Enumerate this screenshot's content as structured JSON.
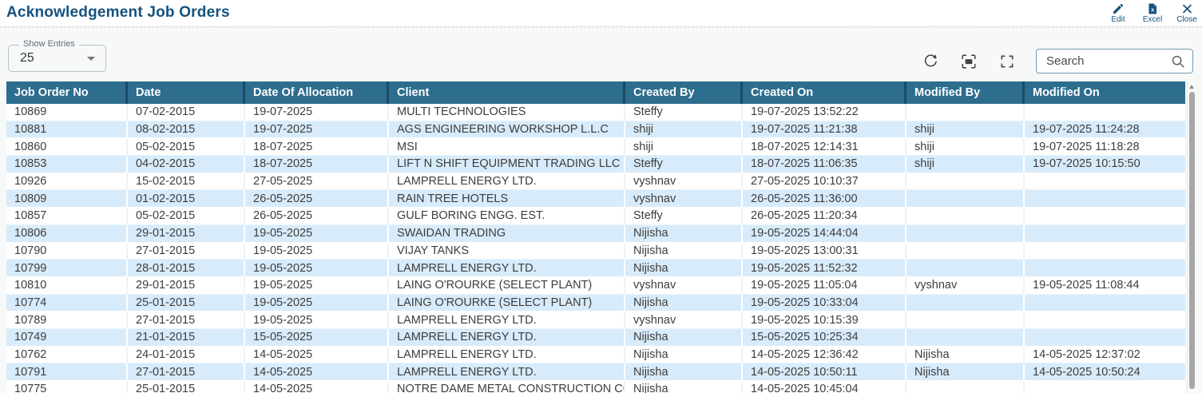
{
  "page": {
    "title": "Acknowledgement Job Orders"
  },
  "actions": {
    "edit": "Edit",
    "excel": "Excel",
    "close": "Close"
  },
  "controls": {
    "show_entries": {
      "label": "Show Entries",
      "value": "25"
    },
    "search": {
      "placeholder": "Search"
    }
  },
  "icons": {
    "edit": "pencil-icon",
    "excel": "excel-file-icon",
    "close": "close-x-icon",
    "refresh": "circular-arrow-icon",
    "fit_screen": "fit-to-screen-icon",
    "fullscreen": "expand-corners-icon",
    "search": "magnifier-icon",
    "show_entries": "caret-down-icon",
    "scrollbar": "triangle-up-icon"
  },
  "colors": {
    "accent_blue": "#14527d",
    "header_bg": "#2d6d8e",
    "header_separator": "#1b4b67",
    "row_alt": "#d8ebfa",
    "panel_bg": "#f6f9f8",
    "cell_text": "#3d3d3d"
  },
  "table": {
    "columns": [
      "Job Order No",
      "Date",
      "Date Of Allocation",
      "Client",
      "Created By",
      "Created On",
      "Modified By",
      "Modified On"
    ],
    "rows": [
      [
        "10869",
        "07-02-2015",
        "19-07-2025",
        "MULTI TECHNOLOGIES",
        "Steffy",
        "19-07-2025 13:52:22",
        "",
        ""
      ],
      [
        "10881",
        "08-02-2015",
        "19-07-2025",
        "AGS ENGINEERING WORKSHOP L.L.C",
        "shiji",
        "19-07-2025 11:21:38",
        "shiji",
        "19-07-2025 11:24:28"
      ],
      [
        "10860",
        "05-02-2015",
        "18-07-2025",
        "MSI",
        "shiji",
        "18-07-2025 12:14:31",
        "shiji",
        "19-07-2025 11:18:28"
      ],
      [
        "10853",
        "04-02-2015",
        "18-07-2025",
        "LIFT N SHIFT EQUIPMENT TRADING LLC",
        "Steffy",
        "18-07-2025 11:06:35",
        "shiji",
        "19-07-2025 10:15:50"
      ],
      [
        "10926",
        "15-02-2015",
        "27-05-2025",
        "LAMPRELL ENERGY LTD.",
        "vyshnav",
        "27-05-2025 10:10:37",
        "",
        ""
      ],
      [
        "10809",
        "01-02-2015",
        "26-05-2025",
        "RAIN TREE HOTELS",
        "vyshnav",
        "26-05-2025 11:36:00",
        "",
        ""
      ],
      [
        "10857",
        "05-02-2015",
        "26-05-2025",
        "GULF BORING ENGG. EST.",
        "Steffy",
        "26-05-2025 11:20:34",
        "",
        ""
      ],
      [
        "10806",
        "29-01-2015",
        "19-05-2025",
        "SWAIDAN TRADING",
        "Nijisha",
        "19-05-2025 14:44:04",
        "",
        ""
      ],
      [
        "10790",
        "27-01-2015",
        "19-05-2025",
        "VIJAY TANKS",
        "Nijisha",
        "19-05-2025 13:00:31",
        "",
        ""
      ],
      [
        "10799",
        "28-01-2015",
        "19-05-2025",
        "LAMPRELL ENERGY LTD.",
        "Nijisha",
        "19-05-2025 11:52:32",
        "",
        ""
      ],
      [
        "10810",
        "29-01-2015",
        "19-05-2025",
        "LAING O'ROURKE (SELECT PLANT)",
        "vyshnav",
        "19-05-2025 11:05:04",
        "vyshnav",
        "19-05-2025 11:08:44"
      ],
      [
        "10774",
        "25-01-2015",
        "19-05-2025",
        "LAING O'ROURKE (SELECT PLANT)",
        "Nijisha",
        "19-05-2025 10:33:04",
        "",
        ""
      ],
      [
        "10789",
        "27-01-2015",
        "19-05-2025",
        "LAMPRELL ENERGY LTD.",
        "vyshnav",
        "19-05-2025 10:15:39",
        "",
        ""
      ],
      [
        "10749",
        "21-01-2015",
        "15-05-2025",
        "LAMPRELL ENERGY LTD.",
        "Nijisha",
        "15-05-2025 10:25:34",
        "",
        ""
      ],
      [
        "10762",
        "24-01-2015",
        "14-05-2025",
        "LAMPRELL ENERGY LTD.",
        "Nijisha",
        "14-05-2025 12:36:42",
        "Nijisha",
        "14-05-2025 12:37:02"
      ],
      [
        "10791",
        "27-01-2015",
        "14-05-2025",
        "LAMPRELL ENERGY LTD.",
        "Nijisha",
        "14-05-2025 10:50:11",
        "Nijisha",
        "14-05-2025 10:50:24"
      ],
      [
        "10775",
        "25-01-2015",
        "14-05-2025",
        "NOTRE DAME METAL CONSTRUCTION CO",
        "Nijisha",
        "14-05-2025 10:45:04",
        "",
        ""
      ]
    ]
  }
}
